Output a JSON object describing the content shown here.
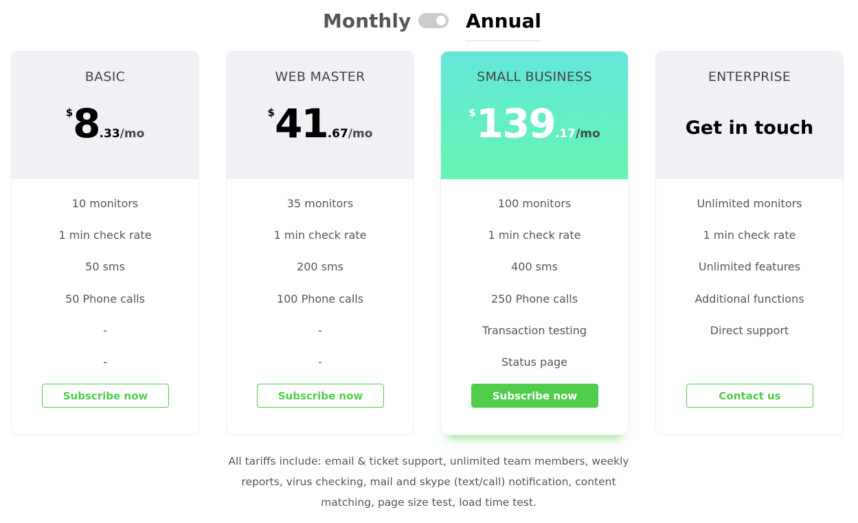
{
  "toggle": {
    "monthly": "Monthly",
    "annual": "Annual",
    "selected": "Annual"
  },
  "colors": {
    "accent": "#4fcd4a",
    "featured_gradient_top": "#62e6dc",
    "featured_gradient_bottom": "#65f5b0"
  },
  "plans": [
    {
      "name": "BASIC",
      "currency": "$",
      "price": "8",
      "cents": ".33",
      "per": "/mo",
      "features": [
        "10 monitors",
        "1 min check rate",
        "50 sms",
        "50 Phone calls",
        "-",
        "-"
      ],
      "button": "Subscribe now"
    },
    {
      "name": "WEB MASTER",
      "currency": "$",
      "price": "41",
      "cents": ".67",
      "per": "/mo",
      "features": [
        "35 monitors",
        "1 min check rate",
        "200 sms",
        "100 Phone calls",
        "-",
        "-"
      ],
      "button": "Subscribe now"
    },
    {
      "name": "SMALL BUSINESS",
      "currency": "$",
      "price": "139",
      "cents": ".17",
      "per": "/mo",
      "features": [
        "100 monitors",
        "1 min check rate",
        "400 sms",
        "250 Phone calls",
        "Transaction testing",
        "Status page"
      ],
      "button": "Subscribe now",
      "featured": true
    },
    {
      "name": "ENTERPRISE",
      "headline": "Get in touch",
      "features": [
        "Unlimited monitors",
        "1 min check rate",
        "Unlimited features",
        "Additional functions",
        "Direct support"
      ],
      "button": "Contact us"
    }
  ],
  "footer_note": "All tariffs include: email & ticket support, unlimited team members, weekly reports, virus checking, mail and skype (text/call) notification, content matching, page size test, load time test."
}
